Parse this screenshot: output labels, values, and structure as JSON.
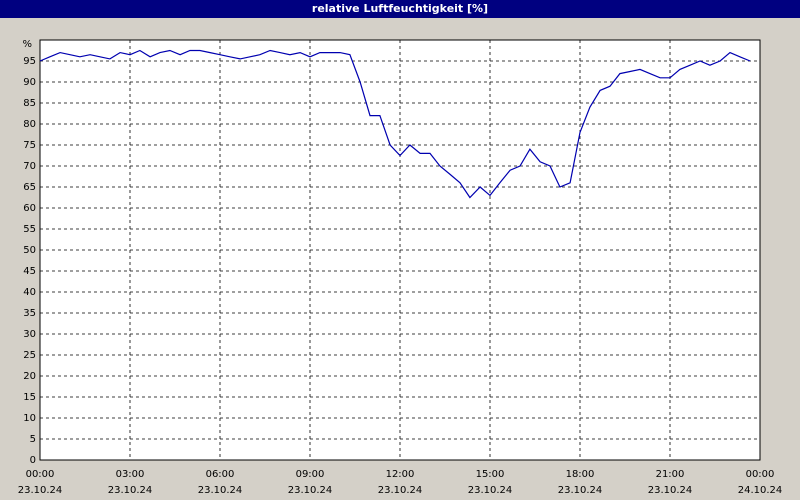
{
  "chart_data": {
    "type": "line",
    "title": "relative Luftfeuchtigkeit [%]",
    "y_unit": "%",
    "x": [
      0,
      0.33,
      0.67,
      1,
      1.33,
      1.67,
      2,
      2.33,
      2.67,
      3,
      3.33,
      3.67,
      4,
      4.33,
      4.67,
      5,
      5.33,
      5.67,
      6,
      6.33,
      6.67,
      7,
      7.33,
      7.67,
      8,
      8.33,
      8.67,
      9,
      9.33,
      9.67,
      10,
      10.33,
      10.67,
      11,
      11.33,
      11.67,
      12,
      12.33,
      12.67,
      13,
      13.33,
      13.67,
      14,
      14.33,
      14.67,
      15,
      15.33,
      15.67,
      16,
      16.33,
      16.67,
      17,
      17.33,
      17.67,
      18,
      18.33,
      18.67,
      19,
      19.33,
      19.67,
      20,
      20.33,
      20.67,
      21,
      21.33,
      21.67,
      22,
      22.33,
      22.67,
      23,
      23.33,
      23.67
    ],
    "series": [
      {
        "name": "relative Luftfeuchtigkeit",
        "color": "#0000b0",
        "values": [
          95,
          96,
          97,
          96.5,
          96,
          96.5,
          96,
          95.5,
          97,
          96.5,
          97.5,
          96,
          97,
          97.5,
          96.5,
          97.5,
          97.5,
          97,
          96.5,
          96,
          95.5,
          96,
          96.5,
          97.5,
          97,
          96.5,
          97,
          96,
          97,
          97,
          97,
          96.5,
          90,
          82,
          82,
          75,
          72.5,
          75,
          73,
          73,
          70,
          68,
          66,
          62.5,
          65,
          63,
          66,
          69,
          70,
          74,
          71,
          70,
          65,
          66,
          78,
          84,
          88,
          89,
          92,
          92.5,
          93,
          92,
          91,
          91,
          93,
          94,
          95,
          94,
          95,
          97,
          96,
          95
        ]
      }
    ],
    "xlim": [
      0,
      24
    ],
    "xticks": [
      {
        "value": 0,
        "label": "00:00"
      },
      {
        "value": 3,
        "label": "03:00"
      },
      {
        "value": 6,
        "label": "06:00"
      },
      {
        "value": 9,
        "label": "09:00"
      },
      {
        "value": 12,
        "label": "12:00"
      },
      {
        "value": 15,
        "label": "15:00"
      },
      {
        "value": 18,
        "label": "18:00"
      },
      {
        "value": 21,
        "label": "21:00"
      },
      {
        "value": 24,
        "label": "00:00"
      }
    ],
    "xtick_dates": [
      "23.10.24",
      "23.10.24",
      "23.10.24",
      "23.10.24",
      "23.10.24",
      "23.10.24",
      "23.10.24",
      "23.10.24",
      "24.10.24"
    ],
    "ylim": [
      0,
      100
    ],
    "yticks": [
      0,
      5,
      10,
      15,
      20,
      25,
      30,
      35,
      40,
      45,
      50,
      55,
      60,
      65,
      70,
      75,
      80,
      85,
      90,
      95
    ],
    "grid": true
  }
}
